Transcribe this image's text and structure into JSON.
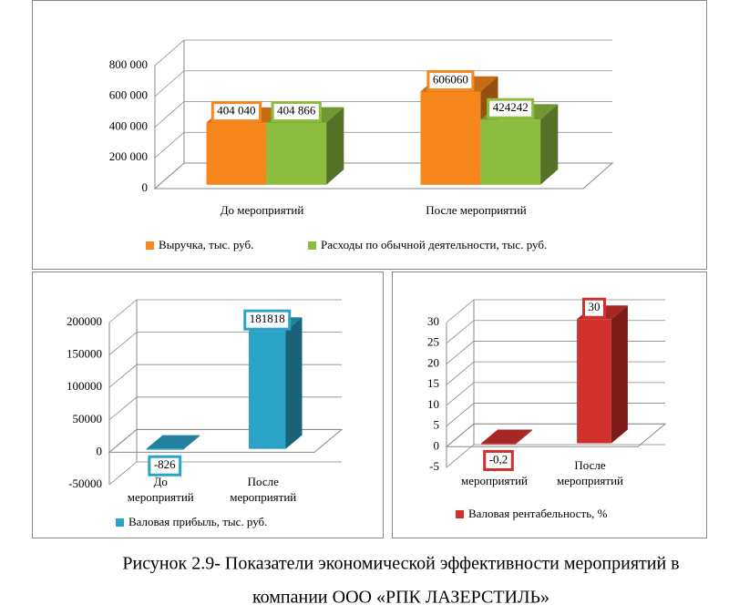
{
  "chart_data": [
    {
      "type": "bar",
      "categories": [
        "До мероприятий",
        "После мероприятий"
      ],
      "series": [
        {
          "name": "Выручка, тыс. руб.",
          "color": "#f7861c",
          "values": [
            404040,
            606060
          ],
          "value_labels": [
            "404 040",
            "606060"
          ]
        },
        {
          "name": "Расходы по обычной деятельности, тыс. руб.",
          "color": "#8cbd3f",
          "values": [
            404866,
            424242
          ],
          "value_labels": [
            "404 866",
            "424242"
          ]
        }
      ],
      "ylim": [
        0,
        800000
      ],
      "yticks": [
        0,
        {
          "value": 200000,
          "label": "200 000"
        },
        {
          "value": 400000,
          "label": "400 000"
        },
        {
          "value": 600000,
          "label": "600 000"
        },
        {
          "value": 800000,
          "label": "800 000"
        }
      ],
      "grid": true
    },
    {
      "type": "bar",
      "categories": [
        "До мероприятий",
        "После мероприятий"
      ],
      "series": [
        {
          "name": "Валовая прибыль, тыс. руб.",
          "color": "#2ba3c6",
          "values": [
            -826,
            181818
          ]
        }
      ],
      "ylim": [
        -50000,
        200000
      ],
      "yticks": [
        -50000,
        0,
        50000,
        100000,
        150000,
        200000
      ],
      "grid": true
    },
    {
      "type": "bar",
      "categories": [
        "До мероприятий",
        "После мероприятий"
      ],
      "series": [
        {
          "name": "Валовая рентабельность, %",
          "color": "#d0312d",
          "values": [
            -0.2,
            30
          ],
          "value_labels": [
            "-0,2",
            "30"
          ]
        }
      ],
      "ylim": [
        -5,
        30
      ],
      "yticks": [
        -5,
        0,
        5,
        10,
        15,
        20,
        25,
        30
      ],
      "grid": true
    }
  ],
  "caption": [
    "Рисунок 2.9- Показатели экономической эффективности мероприятий в",
    "компании ООО «РПК ЛАЗЕРСТИЛЬ»"
  ]
}
